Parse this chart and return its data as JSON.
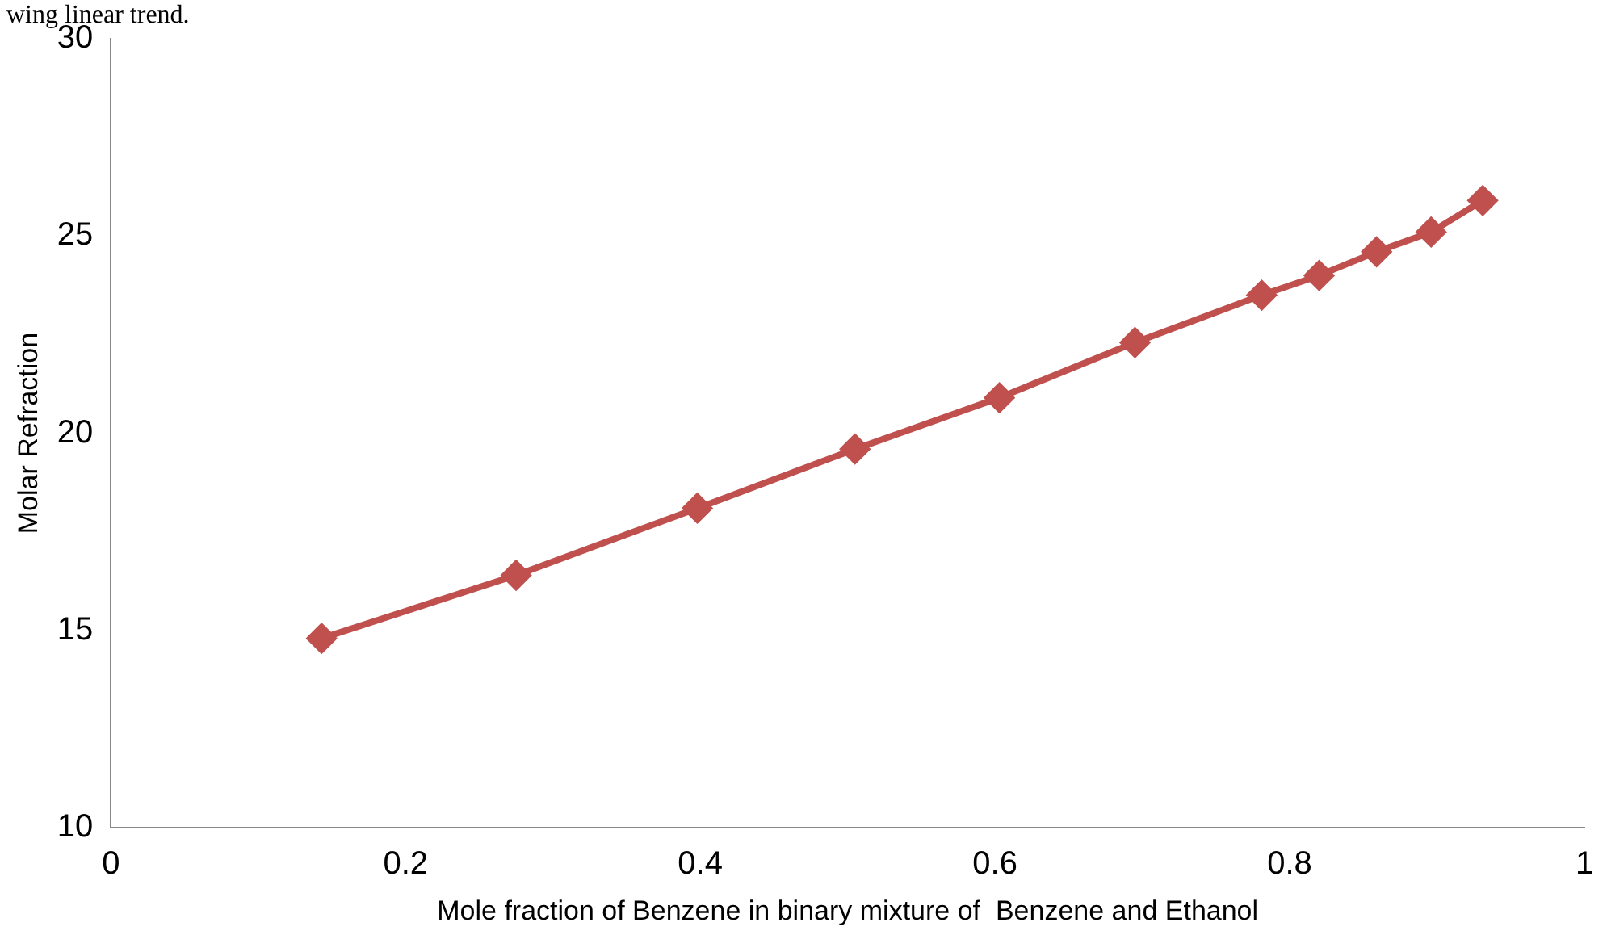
{
  "chart_data": {
    "type": "line",
    "xlabel": "Mole fraction of Benzene in binary mixture of  Benzene and Ethanol",
    "ylabel": "Molar Refraction",
    "annotations": [
      "wing linear trend."
    ],
    "x": [
      0.143,
      0.275,
      0.398,
      0.505,
      0.603,
      0.695,
      0.781,
      0.82,
      0.859,
      0.896,
      0.931
    ],
    "series": [
      {
        "color": "#c0504d",
        "values": [
          14.8,
          16.4,
          18.1,
          19.6,
          20.9,
          22.3,
          23.5,
          24.0,
          24.6,
          25.1,
          25.9
        ]
      }
    ],
    "xlim": [
      0,
      1
    ],
    "xticks": [
      0,
      0.2,
      0.4,
      0.6,
      0.8,
      1
    ],
    "ylim": [
      10,
      30
    ],
    "yticks": [
      10,
      15,
      20,
      25,
      30
    ],
    "grid": false,
    "legend": false,
    "marker": "diamond",
    "line_style": "solid"
  }
}
